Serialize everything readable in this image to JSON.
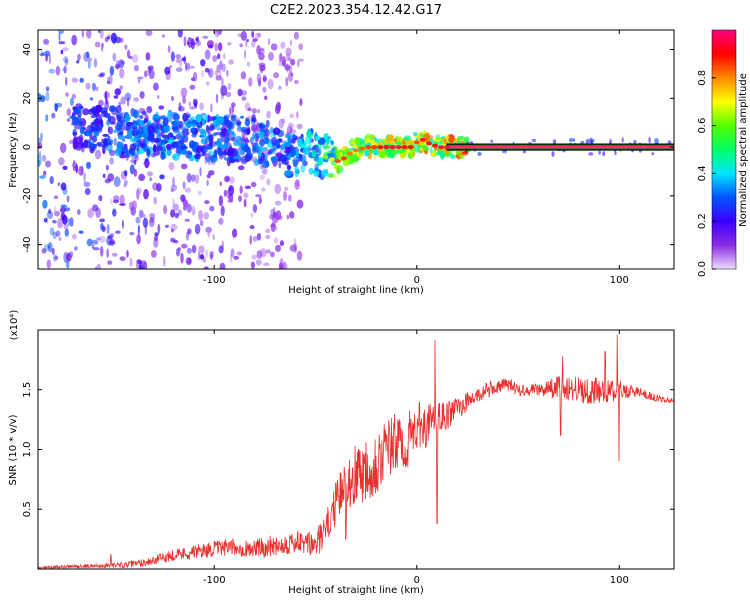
{
  "chart_data": [
    {
      "type": "heatmap",
      "title": "C2E2.2023.354.12.42.G17",
      "xlabel": "Height of straight line (km)",
      "ylabel": "Frequency (Hz)",
      "xlim": [
        -187,
        127
      ],
      "ylim": [
        -50,
        48
      ],
      "x_ticks": [
        {
          "value": -100,
          "label": "-100"
        },
        {
          "value": 0,
          "label": "0"
        },
        {
          "value": 100,
          "label": "100"
        }
      ],
      "y_ticks": [
        {
          "value": -40,
          "label": "-40"
        },
        {
          "value": -20,
          "label": "-20"
        },
        {
          "value": 0,
          "label": "0"
        },
        {
          "value": 20,
          "label": "20"
        },
        {
          "value": 40,
          "label": "40"
        }
      ],
      "colorbar": {
        "label": "Normalized spectral amplitude",
        "range": [
          0.0,
          1.0
        ],
        "ticks": [
          "0.0",
          "0.2",
          "0.4",
          "0.6",
          "0.8"
        ],
        "colors": [
          "#eedcff",
          "#8a2be2",
          "#3a00ff",
          "#0055ff",
          "#00e5ff",
          "#00ff66",
          "#55ff00",
          "#ffff00",
          "#ff8800",
          "#ff0000",
          "#ff0080"
        ]
      },
      "ridge": {
        "x": [
          -165,
          -150,
          -135,
          -120,
          -105,
          -90,
          -80,
          -70,
          -63,
          -55,
          -48,
          -42,
          -38,
          -32,
          -25,
          -18,
          -10,
          -3,
          0,
          3,
          7,
          12,
          20,
          40,
          60,
          80,
          100,
          127
        ],
        "freq": [
          8,
          7,
          5,
          5,
          3,
          4,
          2,
          0,
          -4,
          -2,
          -3,
          -5,
          -6,
          -2,
          0,
          0,
          0,
          0,
          2,
          3,
          1,
          0,
          0,
          0,
          0,
          0,
          0,
          0
        ],
        "amplitude": [
          0.35,
          0.4,
          0.45,
          0.45,
          0.45,
          0.4,
          0.45,
          0.45,
          0.4,
          0.5,
          0.55,
          0.7,
          0.9,
          0.8,
          0.85,
          0.9,
          0.95,
          0.9,
          0.85,
          0.95,
          0.9,
          0.95,
          1.0,
          1.0,
          1.0,
          1.0,
          1.0,
          1.0
        ]
      }
    },
    {
      "type": "line",
      "title": "",
      "xlabel": "Height of straight line (km)",
      "ylabel": "SNR (10 * v/v)",
      "y_multiplier": "(x10⁴)",
      "xlim": [
        -187,
        127
      ],
      "ylim": [
        0,
        2.0
      ],
      "color": "#e8312f",
      "x_ticks": [
        {
          "value": -100,
          "label": "-100"
        },
        {
          "value": 0,
          "label": "0"
        },
        {
          "value": 100,
          "label": "100"
        }
      ],
      "y_ticks": [
        {
          "value": 0.5,
          "label": "0.5"
        },
        {
          "value": 1.0,
          "label": "1.0"
        },
        {
          "value": 1.5,
          "label": "1.5"
        }
      ],
      "envelope": {
        "x": [
          -187,
          -170,
          -150,
          -140,
          -130,
          -120,
          -110,
          -100,
          -90,
          -80,
          -70,
          -60,
          -50,
          -45,
          -40,
          -35,
          -30,
          -25,
          -20,
          -15,
          -10,
          -5,
          0,
          5,
          10,
          15,
          20,
          25,
          30,
          35,
          40,
          45,
          50,
          60,
          70,
          80,
          90,
          100,
          110,
          120,
          127
        ],
        "y": [
          0.01,
          0.02,
          0.03,
          0.04,
          0.07,
          0.12,
          0.14,
          0.17,
          0.18,
          0.17,
          0.2,
          0.22,
          0.2,
          0.32,
          0.55,
          0.7,
          0.8,
          0.85,
          0.9,
          1.0,
          1.05,
          1.05,
          1.2,
          1.2,
          1.25,
          1.28,
          1.35,
          1.4,
          1.45,
          1.5,
          1.52,
          1.55,
          1.5,
          1.5,
          1.52,
          1.5,
          1.48,
          1.5,
          1.48,
          1.42,
          1.41
        ]
      },
      "noise": {
        "x": [
          -187,
          -150,
          -130,
          -110,
          -90,
          -70,
          -55,
          -45,
          -35,
          -25,
          -15,
          -5,
          5,
          15,
          25,
          40,
          60,
          70,
          80,
          90,
          100,
          110,
          127
        ],
        "y": [
          0.01,
          0.02,
          0.04,
          0.06,
          0.07,
          0.09,
          0.1,
          0.14,
          0.22,
          0.3,
          0.28,
          0.24,
          0.18,
          0.12,
          0.08,
          0.06,
          0.05,
          0.1,
          0.12,
          0.12,
          0.08,
          0.04,
          0.02
        ]
      },
      "spikes": [
        {
          "x": 9,
          "y": 1.92
        },
        {
          "x": 10,
          "y": 0.38
        },
        {
          "x": 99,
          "y": 1.96
        },
        {
          "x": 99.8,
          "y": 0.9
        },
        {
          "x": 71,
          "y": 1.12
        },
        {
          "x": 72,
          "y": 1.78
        },
        {
          "x": 93,
          "y": 1.82
        },
        {
          "x": -35,
          "y": 0.25
        },
        {
          "x": -151,
          "y": 0.12
        }
      ]
    }
  ]
}
